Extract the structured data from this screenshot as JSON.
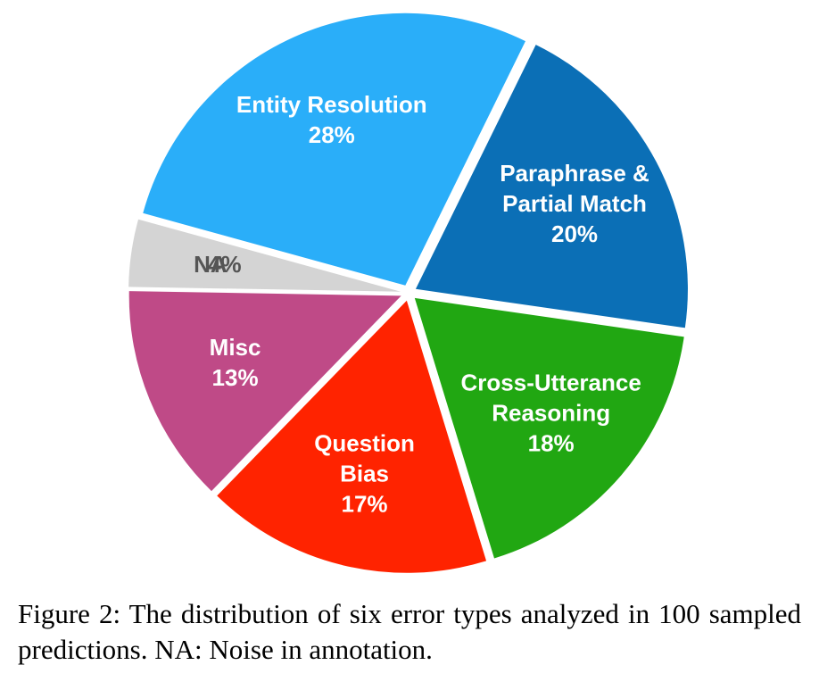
{
  "chart_data": {
    "type": "pie",
    "categories": [
      [
        "Entity Resolution"
      ],
      [
        "Paraphrase &",
        "Partial Match"
      ],
      [
        "Cross-Utterance",
        "Reasoning"
      ],
      [
        "Question",
        "Bias"
      ],
      [
        "Misc"
      ],
      [
        "NA"
      ]
    ],
    "values": [
      28,
      20,
      18,
      17,
      13,
      4
    ],
    "value_labels": [
      "28%",
      "20%",
      "18%",
      "17%",
      "13%",
      "4%"
    ],
    "colors": [
      "#2aaef9",
      "#0b6fb6",
      "#21a712",
      "#ff2300",
      "#bf4a87",
      "#d4d4d4"
    ],
    "label_colors": [
      "#ffffff",
      "#ffffff",
      "#ffffff",
      "#ffffff",
      "#ffffff",
      "#555555"
    ],
    "caption": "Figure 2: The distribution of six error types analyzed in 100 sampled predictions. NA: Noise in annotation."
  }
}
